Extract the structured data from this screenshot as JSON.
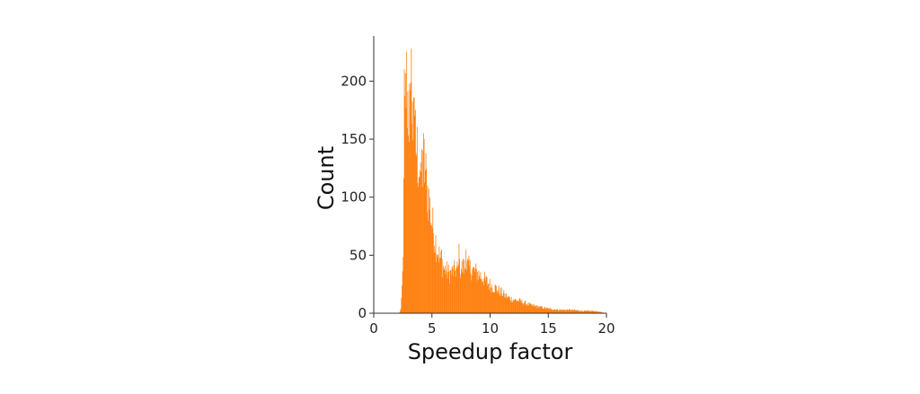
{
  "chart_data": {
    "type": "bar",
    "histogram": true,
    "title": "",
    "xlabel": "Speedup factor",
    "ylabel": "Count",
    "xlim": [
      0,
      20
    ],
    "ylim": [
      0,
      240
    ],
    "xticks": [
      0,
      5,
      10,
      15,
      20
    ],
    "yticks": [
      0,
      50,
      100,
      150,
      200
    ],
    "grid": false,
    "legend": "none",
    "bin_width": 0.05,
    "bar_color": "#ff7f0e",
    "axis_color": "#333333",
    "density_profile": {
      "x": [
        2.2,
        2.35,
        2.5,
        2.6,
        2.7,
        2.8,
        3.0,
        3.3,
        3.6,
        4.0,
        4.3,
        4.6,
        5.0,
        5.5,
        6.0,
        6.5,
        7.0,
        7.5,
        8.0,
        8.5,
        9.0,
        9.5,
        10.0,
        10.5,
        11.0,
        11.5,
        12.0,
        12.5,
        13.0,
        13.5,
        14.0,
        14.5,
        15.0,
        16.0,
        17.0,
        18.0,
        19.0,
        20.0
      ],
      "y": [
        0,
        5,
        40,
        120,
        180,
        205,
        180,
        170,
        150,
        125,
        135,
        110,
        80,
        55,
        40,
        35,
        38,
        40,
        42,
        38,
        35,
        30,
        25,
        22,
        18,
        14,
        12,
        11,
        9,
        7,
        6,
        5,
        4,
        3,
        3,
        2,
        2,
        0
      ]
    },
    "spikes": [
      {
        "x": 2.65,
        "y": 210
      },
      {
        "x": 2.75,
        "y": 207
      },
      {
        "x": 3.25,
        "y": 228
      },
      {
        "x": 3.45,
        "y": 186
      },
      {
        "x": 3.15,
        "y": 192
      },
      {
        "x": 3.55,
        "y": 170
      },
      {
        "x": 4.45,
        "y": 141
      },
      {
        "x": 4.25,
        "y": 140
      },
      {
        "x": 4.05,
        "y": 130
      },
      {
        "x": 5.85,
        "y": 55
      },
      {
        "x": 7.35,
        "y": 60
      },
      {
        "x": 7.65,
        "y": 57
      },
      {
        "x": 7.95,
        "y": 55
      },
      {
        "x": 8.55,
        "y": 50
      },
      {
        "x": 9.15,
        "y": 45
      },
      {
        "x": 14.15,
        "y": 18
      }
    ]
  }
}
